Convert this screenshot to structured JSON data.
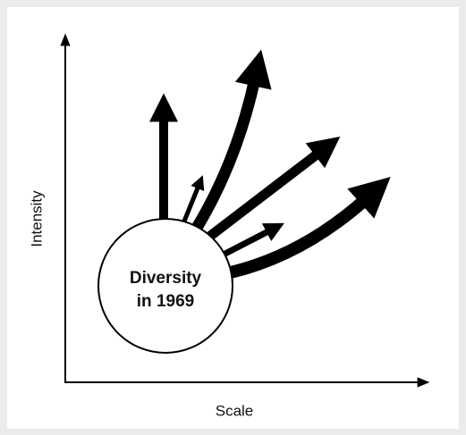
{
  "axes": {
    "y_label": "Intensity",
    "x_label": "Scale"
  },
  "center": {
    "lines": [
      "Diversity",
      "in 1969"
    ]
  }
}
